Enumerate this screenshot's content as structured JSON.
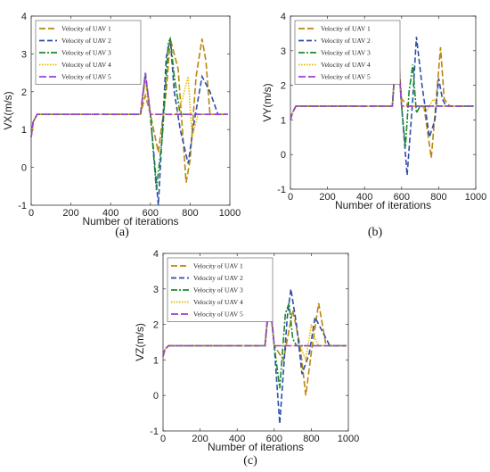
{
  "colors": {
    "UAV 1": "#B8860B",
    "UAV 2": "#2E4FA8",
    "UAV 3": "#1B8A2E",
    "UAV 4": "#E6B800",
    "UAV 5": "#9B3FD1"
  },
  "chart_data": [
    {
      "type": "line",
      "caption": "(a)",
      "xlabel": "Number of iterations",
      "ylabel": "VX(m/s)",
      "xlim": [
        0,
        1000
      ],
      "ylim": [
        -1,
        4
      ],
      "xticks": [
        0,
        200,
        400,
        600,
        800,
        1000
      ],
      "yticks": [
        -1,
        0,
        1,
        2,
        3,
        4
      ],
      "legend_position": "top-left",
      "series": [
        {
          "name": "Velocity of UAV 1",
          "x": [
            0,
            10,
            30,
            550,
            575,
            600,
            640,
            680,
            700,
            740,
            780,
            800,
            830,
            860,
            880,
            900,
            940,
            990
          ],
          "y": [
            0.8,
            1.2,
            1.4,
            1.4,
            1.9,
            1.4,
            0.4,
            2.0,
            3.4,
            2.6,
            -0.4,
            0.2,
            2.4,
            3.4,
            2.8,
            1.4,
            1.4,
            1.4
          ]
        },
        {
          "name": "Velocity of UAV 2",
          "x": [
            0,
            10,
            30,
            550,
            575,
            600,
            640,
            680,
            700,
            720,
            750,
            790,
            820,
            860,
            900,
            940,
            990
          ],
          "y": [
            0.8,
            1.2,
            1.4,
            1.4,
            2.5,
            1.4,
            -1.0,
            2.9,
            3.4,
            2.0,
            1.0,
            0.1,
            1.2,
            2.4,
            2.0,
            1.4,
            1.4
          ]
        },
        {
          "name": "Velocity of UAV 3",
          "x": [
            0,
            10,
            30,
            550,
            575,
            600,
            630,
            660,
            690,
            700,
            720,
            750,
            780,
            990
          ],
          "y": [
            0.8,
            1.2,
            1.4,
            1.4,
            2.4,
            1.4,
            -0.6,
            0.8,
            3.3,
            3.4,
            2.4,
            1.4,
            1.4,
            1.4
          ]
        },
        {
          "name": "Velocity of UAV 4",
          "x": [
            0,
            10,
            30,
            550,
            575,
            600,
            640,
            700,
            730,
            760,
            790,
            810,
            840,
            990
          ],
          "y": [
            0.8,
            1.2,
            1.4,
            1.4,
            2.3,
            1.4,
            1.4,
            1.4,
            1.4,
            1.8,
            2.4,
            0.8,
            1.4,
            1.4
          ]
        },
        {
          "name": "Velocity of UAV 5",
          "x": [
            0,
            10,
            30,
            550,
            575,
            600,
            990
          ],
          "y": [
            0.8,
            1.2,
            1.4,
            1.4,
            2.5,
            1.4,
            1.4
          ]
        }
      ]
    },
    {
      "type": "line",
      "caption": "(b)",
      "xlabel": "Number of iterations",
      "ylabel": "VY(m/s)",
      "xlim": [
        0,
        1000
      ],
      "ylim": [
        -1,
        4
      ],
      "xticks": [
        0,
        200,
        400,
        600,
        800,
        1000
      ],
      "yticks": [
        -1,
        0,
        1,
        2,
        3,
        4
      ],
      "legend_position": "top-left",
      "series": [
        {
          "name": "Velocity of UAV 1",
          "x": [
            0,
            10,
            30,
            550,
            575,
            600,
            640,
            700,
            720,
            760,
            790,
            810,
            830,
            860,
            990
          ],
          "y": [
            1.0,
            1.2,
            1.4,
            1.4,
            3.4,
            1.6,
            1.4,
            1.4,
            1.4,
            -0.1,
            1.8,
            3.1,
            1.6,
            1.4,
            1.4
          ]
        },
        {
          "name": "Velocity of UAV 2",
          "x": [
            0,
            10,
            30,
            550,
            575,
            600,
            630,
            660,
            680,
            710,
            750,
            780,
            800,
            820,
            840,
            990
          ],
          "y": [
            1.0,
            1.2,
            1.4,
            1.4,
            3.3,
            1.4,
            -0.6,
            1.6,
            3.4,
            2.0,
            0.5,
            1.0,
            2.2,
            1.6,
            1.4,
            1.4
          ]
        },
        {
          "name": "Velocity of UAV 3",
          "x": [
            0,
            10,
            30,
            550,
            575,
            600,
            620,
            640,
            660,
            680,
            700,
            990
          ],
          "y": [
            1.0,
            1.2,
            1.4,
            1.4,
            3.3,
            1.4,
            0.2,
            1.8,
            2.6,
            1.2,
            1.4,
            1.4
          ]
        },
        {
          "name": "Velocity of UAV 4",
          "x": [
            0,
            10,
            30,
            550,
            575,
            600,
            640,
            700,
            740,
            770,
            800,
            990
          ],
          "y": [
            1.0,
            1.2,
            1.4,
            1.4,
            3.2,
            1.4,
            1.4,
            1.4,
            1.3,
            1.6,
            1.4,
            1.4
          ]
        },
        {
          "name": "Velocity of UAV 5",
          "x": [
            0,
            10,
            30,
            550,
            575,
            600,
            990
          ],
          "y": [
            1.0,
            1.2,
            1.4,
            1.4,
            3.4,
            1.4,
            1.4
          ]
        }
      ]
    },
    {
      "type": "line",
      "caption": "(c)",
      "xlabel": "Number of iterations",
      "ylabel": "VZ(m/s)",
      "xlim": [
        0,
        1000
      ],
      "ylim": [
        -1,
        4
      ],
      "xticks": [
        0,
        200,
        400,
        600,
        800,
        1000
      ],
      "yticks": [
        -1,
        0,
        1,
        2,
        3,
        4
      ],
      "legend_position": "top-left",
      "series": [
        {
          "name": "Velocity of UAV 1",
          "x": [
            0,
            10,
            30,
            550,
            575,
            600,
            650,
            700,
            740,
            770,
            800,
            840,
            880,
            990
          ],
          "y": [
            1.1,
            1.3,
            1.4,
            1.4,
            2.8,
            1.4,
            1.0,
            2.4,
            1.4,
            0.0,
            1.2,
            2.6,
            1.4,
            1.4
          ]
        },
        {
          "name": "Velocity of UAV 2",
          "x": [
            0,
            10,
            30,
            550,
            575,
            600,
            630,
            670,
            690,
            720,
            750,
            790,
            820,
            860,
            900,
            990
          ],
          "y": [
            1.1,
            1.3,
            1.4,
            1.4,
            2.7,
            1.4,
            -0.8,
            2.2,
            3.0,
            2.0,
            0.6,
            1.2,
            2.2,
            1.8,
            1.4,
            1.4
          ]
        },
        {
          "name": "Velocity of UAV 3",
          "x": [
            0,
            10,
            30,
            550,
            575,
            600,
            630,
            660,
            680,
            700,
            720,
            990
          ],
          "y": [
            1.1,
            1.3,
            1.4,
            1.4,
            2.7,
            1.4,
            0.2,
            2.3,
            2.6,
            1.6,
            1.4,
            1.4
          ]
        },
        {
          "name": "Velocity of UAV 4",
          "x": [
            0,
            10,
            30,
            550,
            575,
            600,
            640,
            700,
            740,
            770,
            800,
            820,
            840,
            990
          ],
          "y": [
            1.1,
            1.3,
            1.4,
            1.4,
            2.9,
            1.4,
            1.4,
            1.4,
            1.4,
            1.0,
            2.0,
            1.6,
            1.4,
            1.4
          ]
        },
        {
          "name": "Velocity of UAV 5",
          "x": [
            0,
            10,
            30,
            550,
            575,
            600,
            990
          ],
          "y": [
            1.1,
            1.3,
            1.4,
            1.4,
            2.9,
            1.4,
            1.4
          ]
        }
      ]
    }
  ]
}
